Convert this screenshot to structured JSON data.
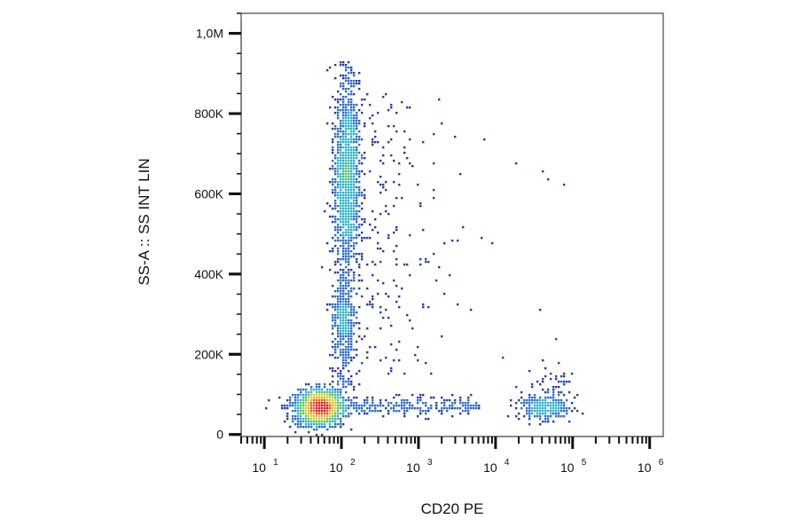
{
  "chart_data": {
    "type": "scatter",
    "xlabel": "CD20 PE",
    "ylabel": "SS-A :: SS INT LIN",
    "x_scale": "log",
    "xlim": [
      5,
      1500000
    ],
    "x_ticks": [
      {
        "base": "10",
        "exp": "1",
        "value": 10
      },
      {
        "base": "10",
        "exp": "2",
        "value": 100
      },
      {
        "base": "10",
        "exp": "3",
        "value": 1000
      },
      {
        "base": "10",
        "exp": "4",
        "value": 10000
      },
      {
        "base": "10",
        "exp": "5",
        "value": 100000
      },
      {
        "base": "10",
        "exp": "6",
        "value": 1000000
      }
    ],
    "y_scale": "linear",
    "ylim": [
      -5000,
      1050000
    ],
    "y_ticks": [
      {
        "label": "0",
        "value": 0
      },
      {
        "label": "200K",
        "value": 200000
      },
      {
        "label": "400K",
        "value": 400000
      },
      {
        "label": "600K",
        "value": 600000
      },
      {
        "label": "800K",
        "value": 800000
      },
      {
        "label": "1,0M",
        "value": 1000000
      }
    ],
    "grid": false,
    "legend": "none",
    "color_scale": "density (blue → cyan → green → yellow → orange → red)",
    "colors": [
      "#2b3d9e",
      "#2f6cc4",
      "#2fb3c9",
      "#57c466",
      "#c8d63a",
      "#f0b225",
      "#e8551e",
      "#d41515"
    ],
    "populations": [
      {
        "x_center": 55,
        "y_center": 70000,
        "note": "densest cluster, CD20 negative, low side scatter (lymphocytes)"
      },
      {
        "x_center": 120,
        "y_center": 620000,
        "note": "CD20 negative, high side scatter column (granulocytes)"
      },
      {
        "x_center": 110,
        "y_center": 300000,
        "note": "CD20 negative, intermediate side scatter (monocytes)"
      },
      {
        "x_center": 40000,
        "y_center": 65000,
        "note": "CD20 positive, low side scatter (B cells)"
      }
    ]
  }
}
